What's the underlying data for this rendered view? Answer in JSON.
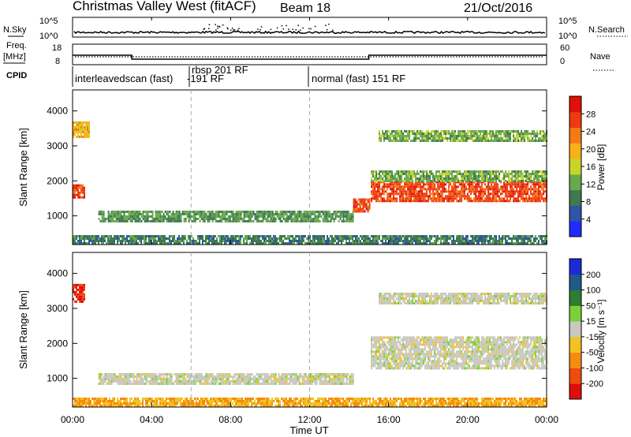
{
  "header": {
    "title": "Christmas Valley West (fitACF)",
    "beam": "Beam 18",
    "date": "21/Oct/2016"
  },
  "nsky_panel": {
    "left_label": "N.Sky",
    "right_label": "N.Search",
    "left_ticks": [
      "10^5",
      "10^0"
    ],
    "right_ticks": [
      "10^5",
      "10^0"
    ]
  },
  "freq_panel": {
    "left_label_1": "Freq.",
    "left_label_2": "[MHz]",
    "left_ticks": [
      "18",
      "8"
    ],
    "right_ticks": [
      "60",
      "0"
    ],
    "right_label": "Nave"
  },
  "cpid": {
    "label": "CPID",
    "modes": [
      {
        "name": "interleavedscan (fast)",
        "start_hour": 0
      },
      {
        "name": "rbsp 201 RF",
        "start_hour": 6
      },
      {
        "name": "-191 RF",
        "start_hour": 6
      },
      {
        "name": "normal (fast) 151 RF",
        "start_hour": 12
      }
    ]
  },
  "x_axis": {
    "title": "Time UT",
    "ticks": [
      "00:00",
      "04:00",
      "08:00",
      "12:00",
      "16:00",
      "20:00",
      "00:00"
    ],
    "range_hours": [
      0,
      24
    ]
  },
  "power_panel": {
    "ylabel": "Slant Range [km]",
    "yticks": [
      "1000",
      "2000",
      "3000",
      "4000"
    ],
    "colorbar_label": "Power [dB]",
    "colorbar_ticks": [
      "4",
      "8",
      "12",
      "16",
      "20",
      "24",
      "28"
    ],
    "colors": [
      "#1f2bff",
      "#2d56a6",
      "#3f7a52",
      "#6aa84f",
      "#c8d42a",
      "#f7b21a",
      "#f57a15",
      "#ee3a10",
      "#e11008"
    ]
  },
  "velocity_panel": {
    "ylabel": "Slant Range [km]",
    "yticks": [
      "1000",
      "2000",
      "3000",
      "4000"
    ],
    "colorbar_label": "Velocity [m s⁻¹]",
    "colorbar_ticks": [
      "200",
      "100",
      "50",
      "15",
      "-15",
      "-50",
      "-100",
      "-200"
    ],
    "colors": [
      "#1b2bd6",
      "#1f5a8a",
      "#2e7d32",
      "#7cd13a",
      "#c8c8c0",
      "#f3c222",
      "#f58c12",
      "#ef4a10",
      "#e10d0d"
    ]
  },
  "chart_data": {
    "type": "heatmap",
    "x_range_hours": [
      0,
      24
    ],
    "y_range_km": [
      180,
      4600
    ],
    "frequency_mhz": [
      {
        "start_hour": 0,
        "end_hour": 3,
        "value": 13
      },
      {
        "start_hour": 3,
        "end_hour": 15,
        "value": 10.5
      },
      {
        "start_hour": 15,
        "end_hour": 24,
        "value": 13
      }
    ],
    "nave": 15,
    "power_regions": [
      {
        "start_hour": 1.3,
        "end_hour": 14.2,
        "range_km": [
          850,
          1150
        ],
        "power_db": 10
      },
      {
        "start_hour": 15.1,
        "end_hour": 24,
        "range_km": [
          1450,
          2000
        ],
        "power_db": 28
      },
      {
        "start_hour": 15.1,
        "end_hour": 24,
        "range_km": [
          2000,
          2300
        ],
        "power_db": 12
      },
      {
        "start_hour": 15.5,
        "end_hour": 24,
        "range_km": [
          3150,
          3450
        ],
        "power_db": 12
      },
      {
        "start_hour": 0,
        "end_hour": 0.6,
        "range_km": [
          1550,
          1900
        ],
        "power_db": 28
      },
      {
        "start_hour": 0,
        "end_hour": 0.8,
        "range_km": [
          3250,
          3700
        ],
        "power_db": 20
      },
      {
        "start_hour": 14.2,
        "end_hour": 15,
        "range_km": [
          1100,
          1500
        ],
        "power_db": 28
      },
      {
        "start_hour": 0,
        "end_hour": 24,
        "range_km": [
          200,
          450
        ],
        "power_db": 8
      }
    ],
    "velocity_regions": [
      {
        "start_hour": 1.3,
        "end_hour": 14.2,
        "range_km": [
          850,
          1150
        ],
        "velocity": 0
      },
      {
        "start_hour": 15.1,
        "end_hour": 24,
        "range_km": [
          1300,
          2200
        ],
        "velocity": 0
      },
      {
        "start_hour": 15.5,
        "end_hour": 24,
        "range_km": [
          3150,
          3450
        ],
        "velocity": 0
      },
      {
        "start_hour": 0,
        "end_hour": 0.6,
        "range_km": [
          3200,
          3700
        ],
        "velocity": -200
      },
      {
        "start_hour": 0,
        "end_hour": 24,
        "range_km": [
          200,
          450
        ],
        "velocity": -50
      }
    ]
  }
}
